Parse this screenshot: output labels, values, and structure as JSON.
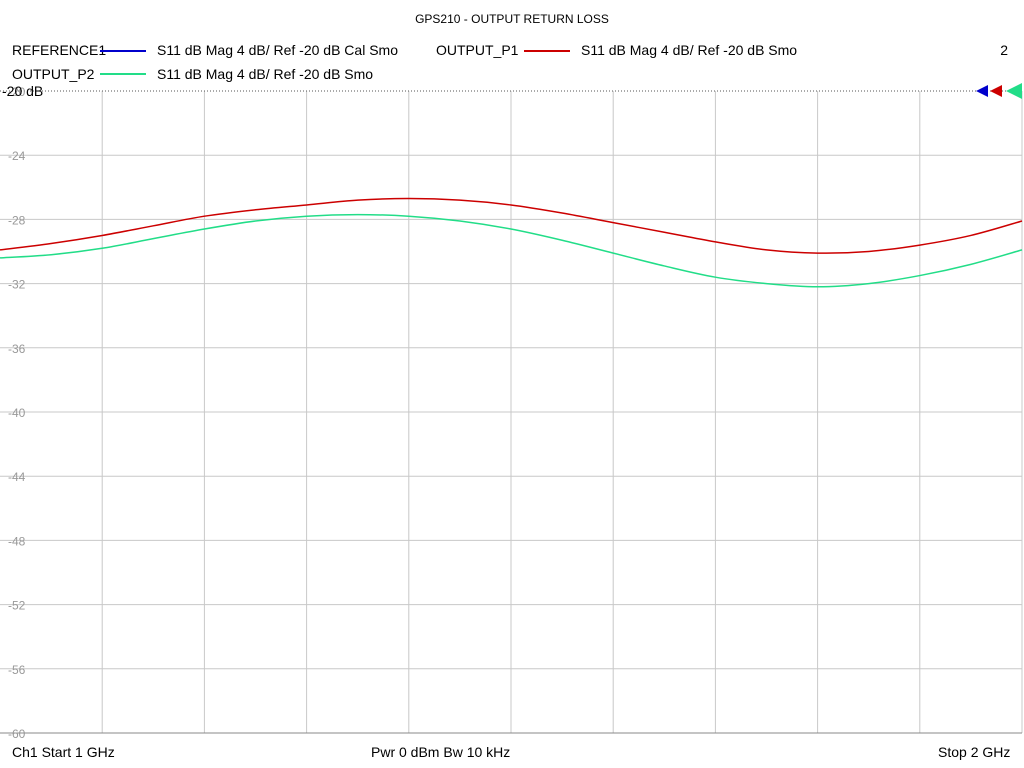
{
  "chart_data": {
    "type": "line",
    "title": "GPS210 - OUTPUT RETURN LOSS",
    "channel_number": "2",
    "reference_label": "-20 dB",
    "ylim": [
      -60,
      -20
    ],
    "y_ticks": [
      "-20",
      "-24",
      "-28",
      "-32",
      "-36",
      "-40",
      "-44",
      "-48",
      "-52",
      "-56",
      "-60"
    ],
    "xlim": [
      1,
      2
    ],
    "x_unit": "GHz",
    "grid": true,
    "series": [
      {
        "name": "REFERENCE1",
        "description": "S11  dB Mag  4 dB/ Ref -20 dB  Cal Smo",
        "color": "#0000cc",
        "x": [],
        "y": []
      },
      {
        "name": "OUTPUT_P1",
        "description": "S11  dB Mag  4 dB/ Ref -20 dB  Smo",
        "color": "#cc0000",
        "x": [
          1.0,
          1.05,
          1.1,
          1.15,
          1.2,
          1.25,
          1.3,
          1.35,
          1.4,
          1.45,
          1.5,
          1.55,
          1.6,
          1.65,
          1.7,
          1.75,
          1.8,
          1.85,
          1.9,
          1.95,
          2.0
        ],
        "y": [
          -29.9,
          -29.5,
          -29.0,
          -28.4,
          -27.8,
          -27.4,
          -27.1,
          -26.8,
          -26.7,
          -26.8,
          -27.1,
          -27.6,
          -28.2,
          -28.8,
          -29.4,
          -29.9,
          -30.1,
          -30.0,
          -29.6,
          -29.0,
          -28.1
        ]
      },
      {
        "name": "OUTPUT_P2",
        "description": "S11  dB Mag  4 dB/ Ref -20 dB  Smo",
        "color": "#22dd88",
        "x": [
          1.0,
          1.05,
          1.1,
          1.15,
          1.2,
          1.25,
          1.3,
          1.35,
          1.4,
          1.45,
          1.5,
          1.55,
          1.6,
          1.65,
          1.7,
          1.75,
          1.8,
          1.85,
          1.9,
          1.95,
          2.0
        ],
        "y": [
          -30.4,
          -30.2,
          -29.8,
          -29.2,
          -28.6,
          -28.1,
          -27.8,
          -27.7,
          -27.8,
          -28.1,
          -28.6,
          -29.3,
          -30.1,
          -30.9,
          -31.6,
          -32.0,
          -32.2,
          -32.0,
          -31.5,
          -30.8,
          -29.9
        ]
      }
    ],
    "markers": [
      {
        "color": "#0000cc"
      },
      {
        "color": "#cc0000"
      },
      {
        "color": "#22dd88"
      }
    ]
  },
  "footer": {
    "left": "Ch1  Start  1 GHz",
    "center": "Pwr  0 dBm  Bw  10 kHz",
    "right": "Stop  2 GHz"
  }
}
